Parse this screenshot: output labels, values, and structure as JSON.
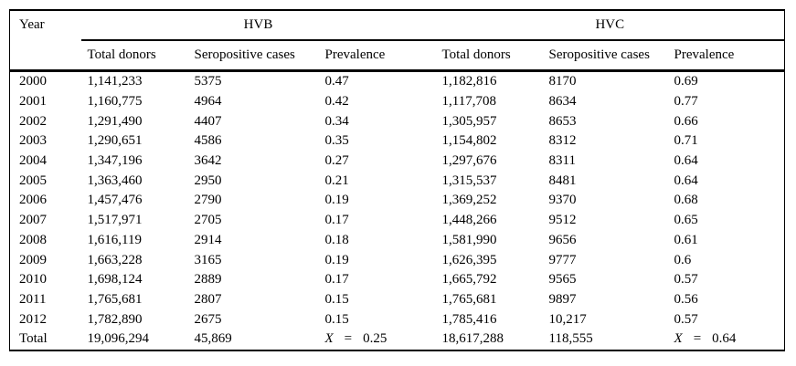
{
  "table": {
    "header": {
      "year": "Year",
      "hvb": "HVB",
      "hvc": "HVC",
      "sub": [
        "Total donors",
        "Seropositive cases",
        "Prevalence",
        "Total donors",
        "Seropositive cases",
        "Prevalence"
      ]
    },
    "rows": [
      [
        "2000",
        "1,141,233",
        "5375",
        "0.47",
        "1,182,816",
        "8170",
        "0.69"
      ],
      [
        "2001",
        "1,160,775",
        "4964",
        "0.42",
        "1,117,708",
        "8634",
        "0.77"
      ],
      [
        "2002",
        "1,291,490",
        "4407",
        "0.34",
        "1,305,957",
        "8653",
        "0.66"
      ],
      [
        "2003",
        "1,290,651",
        "4586",
        "0.35",
        "1,154,802",
        "8312",
        "0.71"
      ],
      [
        "2004",
        "1,347,196",
        "3642",
        "0.27",
        "1,297,676",
        "8311",
        "0.64"
      ],
      [
        "2005",
        "1,363,460",
        "2950",
        "0.21",
        "1,315,537",
        "8481",
        "0.64"
      ],
      [
        "2006",
        "1,457,476",
        "2790",
        "0.19",
        "1,369,252",
        "9370",
        "0.68"
      ],
      [
        "2007",
        "1,517,971",
        "2705",
        "0.17",
        "1,448,266",
        "9512",
        "0.65"
      ],
      [
        "2008",
        "1,616,119",
        "2914",
        "0.18",
        "1,581,990",
        "9656",
        "0.61"
      ],
      [
        "2009",
        "1,663,228",
        "3165",
        "0.19",
        "1,626,395",
        "9777",
        "0.6"
      ],
      [
        "2010",
        "1,698,124",
        "2889",
        "0.17",
        "1,665,792",
        "9565",
        "0.57"
      ],
      [
        "2011",
        "1,765,681",
        "2807",
        "0.15",
        "1,765,681",
        "9897",
        "0.56"
      ],
      [
        "2012",
        "1,782,890",
        "2675",
        "0.15",
        "1,785,416",
        "10,217",
        "0.57"
      ]
    ],
    "total": {
      "label": "Total",
      "hvb_donors": "19,096,294",
      "hvb_cases": "45,869",
      "hvb_prev": {
        "symbol": "X",
        "eq": "=",
        "value": "0.25"
      },
      "hvc_donors": "18,617,288",
      "hvc_cases": "118,555",
      "hvc_prev": {
        "symbol": "X",
        "eq": "=",
        "value": "0.64"
      }
    }
  }
}
